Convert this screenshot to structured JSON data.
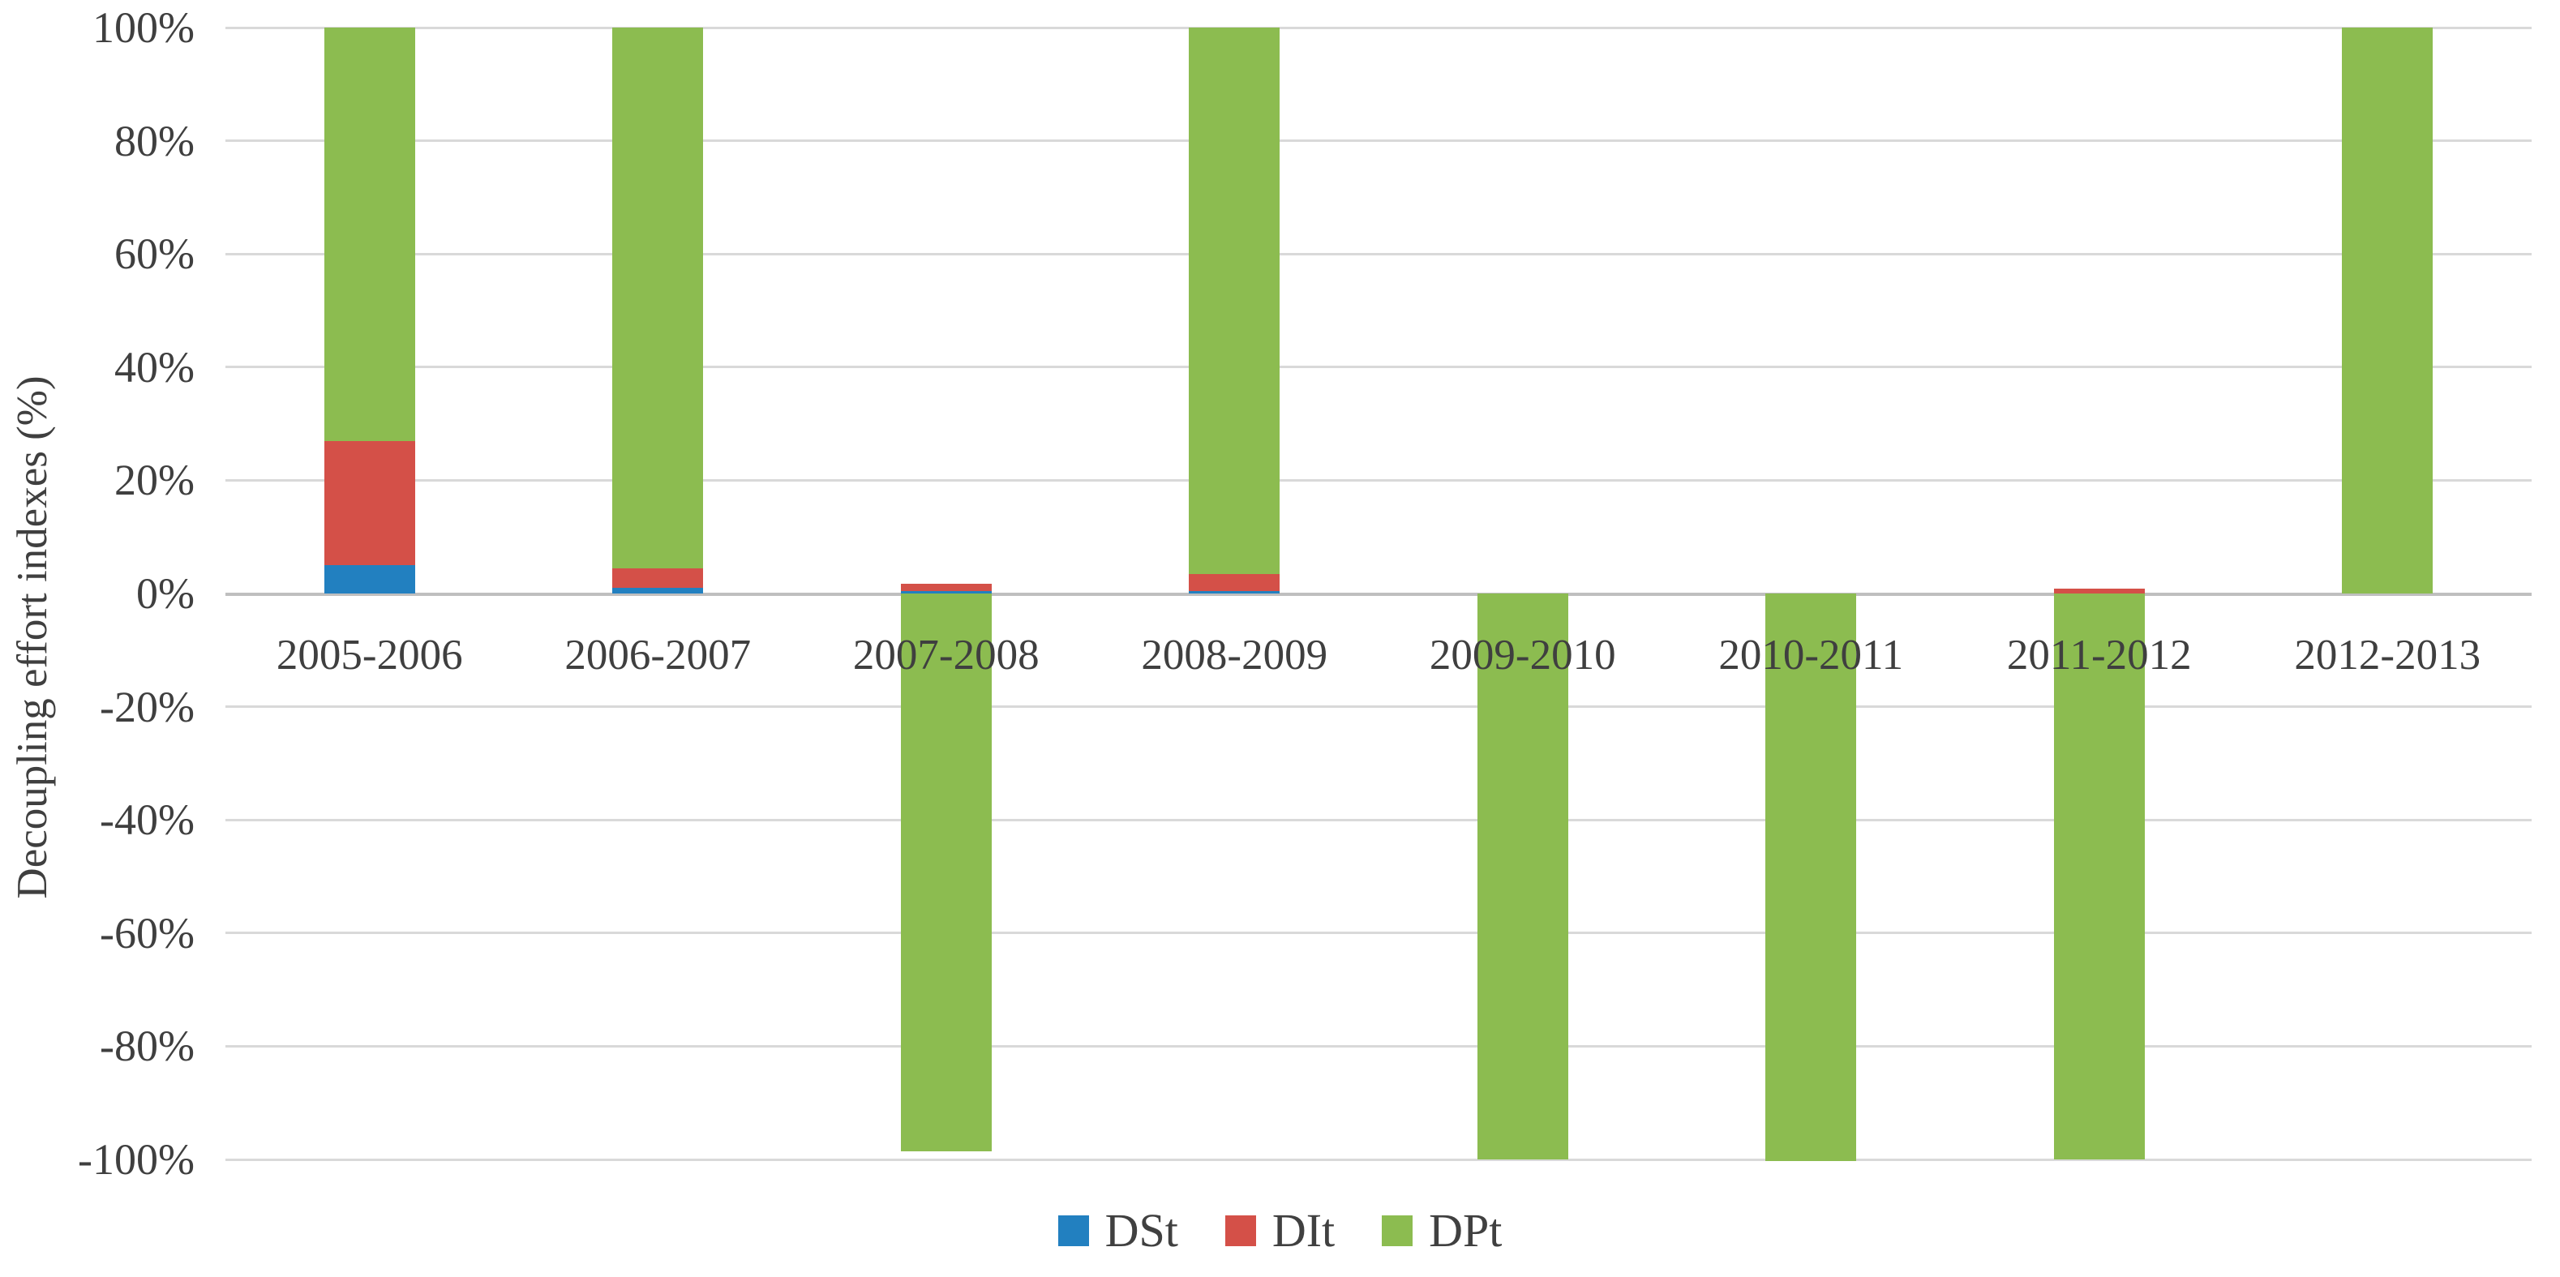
{
  "chart_data": {
    "type": "bar",
    "stacked": true,
    "ylabel": "Decoupling effort indexes  (%)",
    "categories": [
      "2005-2006",
      "2006-2007",
      "2007-2008",
      "2008-2009",
      "2009-2010",
      "2010-2011",
      "2011-2012",
      "2012-2013"
    ],
    "series": [
      {
        "name": "DSt",
        "color": "#2280c0",
        "values": [
          5,
          1,
          0.4,
          0.4,
          0,
          0,
          0,
          0
        ]
      },
      {
        "name": "DIt",
        "color": "#d45048",
        "values": [
          22,
          3.5,
          1.3,
          3,
          0,
          0,
          0.8,
          0
        ]
      },
      {
        "name": "DPt",
        "color": "#8cbc50",
        "values": [
          73,
          95.5,
          -98.5,
          96.6,
          -100,
          -100.3,
          -100,
          100
        ]
      }
    ],
    "ylim": [
      -100,
      100
    ],
    "ytick_step": 20,
    "ytick_labels": [
      "100%",
      "80%",
      "60%",
      "40%",
      "20%",
      "0%",
      "-20%",
      "-40%",
      "-60%",
      "-80%",
      "-100%"
    ],
    "ytick_values": [
      100,
      80,
      60,
      40,
      20,
      0,
      -20,
      -40,
      -60,
      -80,
      -100
    ],
    "grid": "horizontal",
    "legend_position": "bottom"
  },
  "colors": {
    "grid": "#d9d9d9",
    "zero_line": "#bfbfbf",
    "text": "#3f3f3f",
    "background": "#ffffff"
  },
  "layout_hints": {
    "bar_gap": "bars centered in 8 equal category slots",
    "value_axis_side": "left"
  }
}
